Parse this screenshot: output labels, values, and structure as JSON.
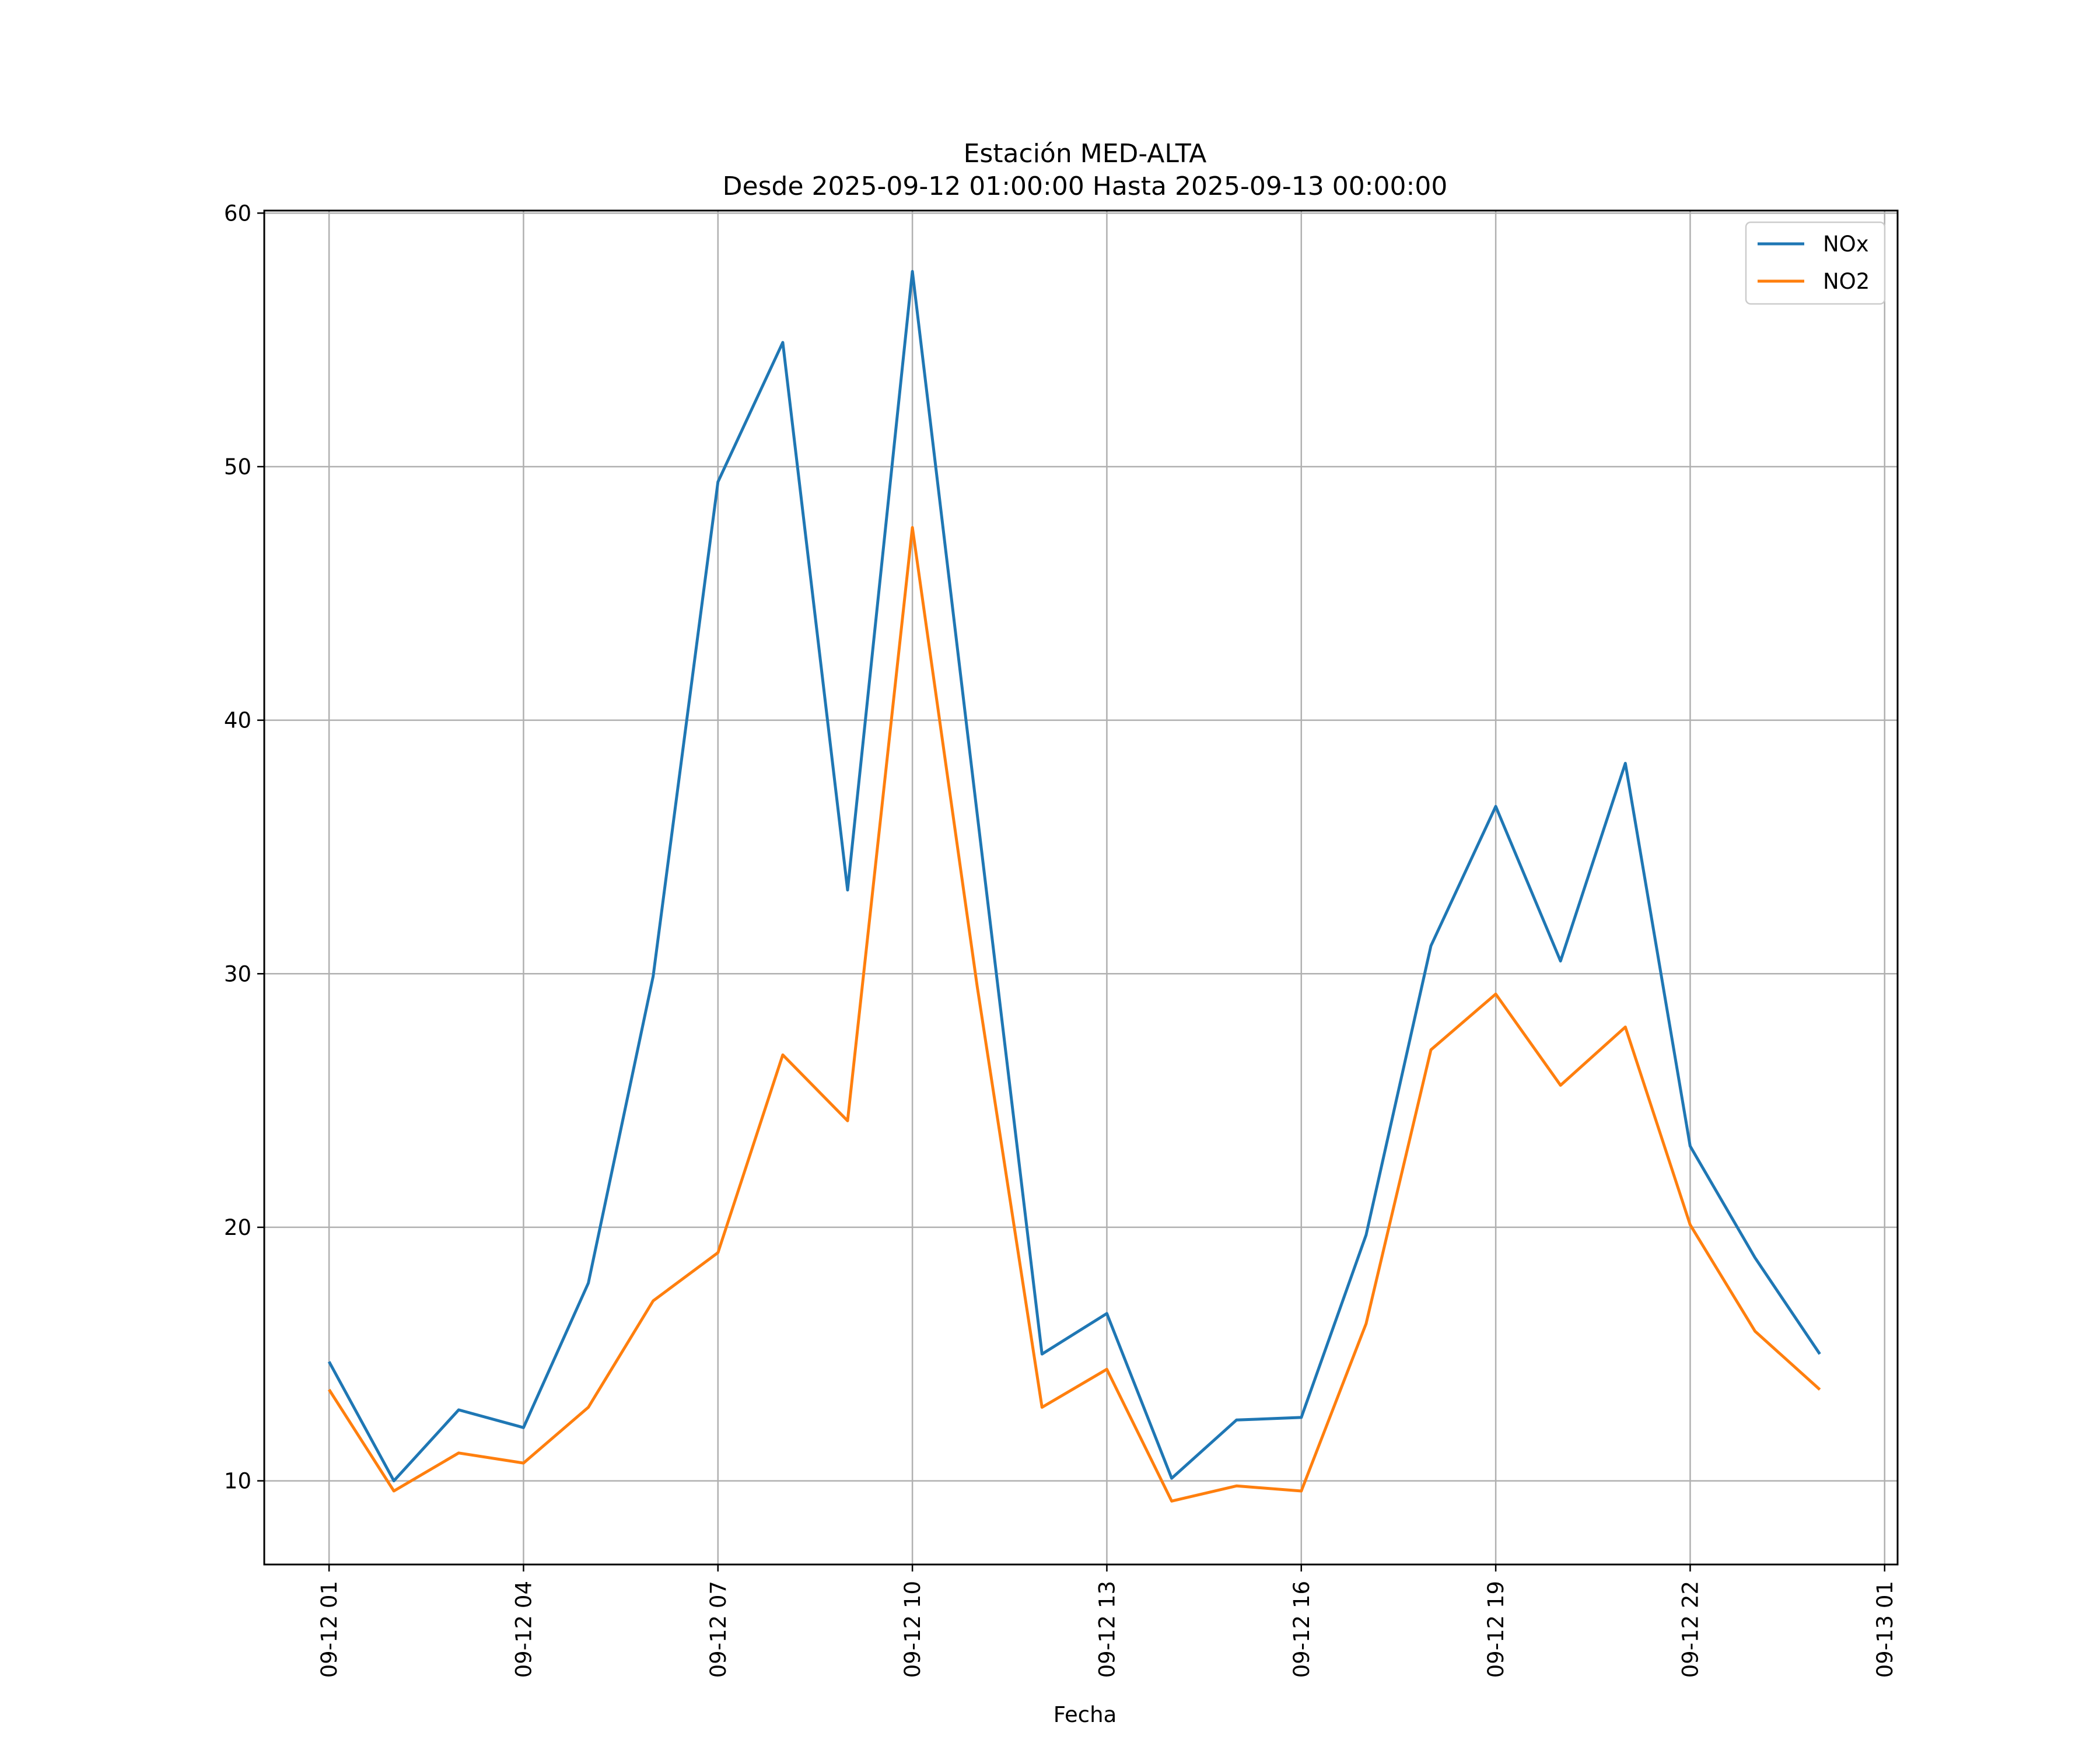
{
  "chart_data": {
    "type": "line",
    "title": "Estación MED-ALTA",
    "subtitle": "Desde 2025-09-12 01:00:00 Hasta 2025-09-13 00:00:00",
    "xlabel": "Fecha",
    "ylabel": "",
    "x": [
      "2025-09-12 01:00",
      "2025-09-12 02:00",
      "2025-09-12 03:00",
      "2025-09-12 04:00",
      "2025-09-12 05:00",
      "2025-09-12 06:00",
      "2025-09-12 07:00",
      "2025-09-12 08:00",
      "2025-09-12 09:00",
      "2025-09-12 10:00",
      "2025-09-12 11:00",
      "2025-09-12 12:00",
      "2025-09-12 13:00",
      "2025-09-12 14:00",
      "2025-09-12 15:00",
      "2025-09-12 16:00",
      "2025-09-12 17:00",
      "2025-09-12 18:00",
      "2025-09-12 19:00",
      "2025-09-12 20:00",
      "2025-09-12 21:00",
      "2025-09-12 22:00",
      "2025-09-12 23:00",
      "2025-09-13 00:00"
    ],
    "series": [
      {
        "name": "NOx",
        "color": "#1f77b4",
        "values": [
          14.7,
          10.0,
          12.8,
          12.1,
          17.8,
          29.9,
          49.4,
          54.9,
          33.3,
          57.7,
          36.3,
          15.0,
          16.6,
          10.1,
          12.4,
          12.5,
          19.7,
          31.1,
          36.6,
          30.5,
          38.3,
          23.2,
          18.8,
          15.0
        ]
      },
      {
        "name": "NO2",
        "color": "#ff7f0e",
        "values": [
          13.6,
          9.6,
          11.1,
          10.7,
          12.9,
          17.1,
          19.0,
          26.8,
          24.2,
          47.6,
          29.5,
          12.9,
          14.4,
          9.2,
          9.8,
          9.6,
          16.2,
          27.0,
          29.2,
          25.6,
          27.9,
          20.1,
          15.9,
          13.6
        ]
      }
    ],
    "xlim": [
      "2025-09-12 00:00",
      "2025-09-13 01:12"
    ],
    "ylim": [
      6.7,
      60.1
    ],
    "x_ticks": [
      {
        "value": "2025-09-12 01:00",
        "label": "09-12 01"
      },
      {
        "value": "2025-09-12 04:00",
        "label": "09-12 04"
      },
      {
        "value": "2025-09-12 07:00",
        "label": "09-12 07"
      },
      {
        "value": "2025-09-12 10:00",
        "label": "09-12 10"
      },
      {
        "value": "2025-09-12 13:00",
        "label": "09-12 13"
      },
      {
        "value": "2025-09-12 16:00",
        "label": "09-12 16"
      },
      {
        "value": "2025-09-12 19:00",
        "label": "09-12 19"
      },
      {
        "value": "2025-09-12 22:00",
        "label": "09-12 22"
      },
      {
        "value": "2025-09-13 01:00",
        "label": "09-13 01"
      }
    ],
    "y_ticks": [
      {
        "value": 10,
        "label": "10"
      },
      {
        "value": 20,
        "label": "20"
      },
      {
        "value": 30,
        "label": "30"
      },
      {
        "value": 40,
        "label": "40"
      },
      {
        "value": 50,
        "label": "50"
      },
      {
        "value": 60,
        "label": "60"
      }
    ],
    "grid": true,
    "legend_position": "top-right"
  }
}
